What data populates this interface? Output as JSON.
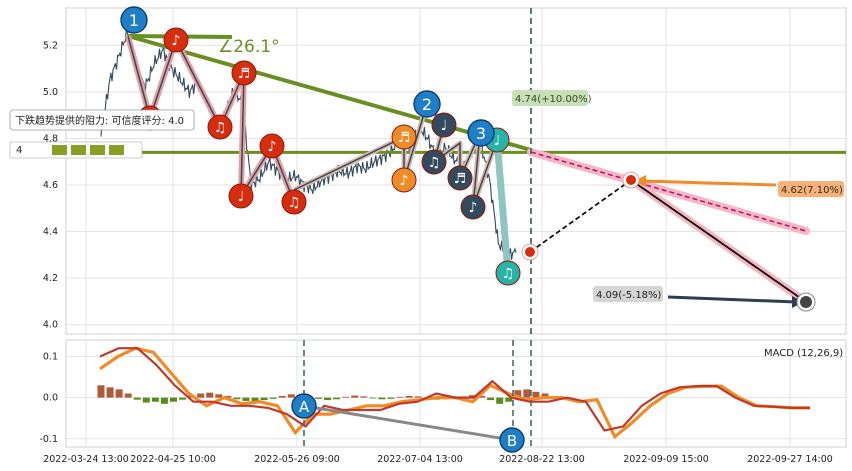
{
  "chart_data": [
    {
      "type": "line",
      "x_ticks": [
        "2022-03-24 13:00",
        "2022-04-25 10:00",
        "2022-05-26 09:00",
        "2022-07-04 13:00",
        "2022-08-22 13:00",
        "2022-09-09 15:00",
        "2022-09-27 14:00"
      ],
      "y_ticks": [
        4.0,
        4.2,
        4.4,
        4.6,
        4.8,
        5.0,
        5.2
      ],
      "ylim": [
        3.96,
        5.36
      ],
      "grid": true,
      "series": [
        {
          "values": [
            4.82,
            5.05,
            5.15,
            5.26,
            5.1,
            5.02,
            5.12,
            5.18,
            5.1,
            5.05,
            5.0,
            5.04,
            4.95,
            4.86,
            4.9,
            5.0,
            4.96,
            4.6,
            4.63,
            4.7,
            4.66,
            4.62,
            4.64,
            4.6,
            4.58,
            4.62,
            4.64,
            4.66,
            4.65,
            4.68,
            4.67,
            4.7,
            4.72,
            4.75,
            4.82,
            4.74,
            4.85,
            4.8,
            4.72,
            4.76,
            4.71,
            4.68,
            4.74,
            4.78,
            4.62,
            4.35,
            4.3,
            4.31
          ]
        }
      ],
      "annotations": {
        "angle_label": "∠26.1°",
        "resistance_label": "下跌趋势提供的阻力: 可信度评分: 4.0",
        "resistance_marker": "4",
        "target_up": "4.74(+10.00%)",
        "target_mid": "4.62(7.10%)",
        "target_down": "4.09(-5.18%)",
        "wave_labels": [
          "1",
          "2",
          "3"
        ],
        "horizontal_level": 4.74,
        "projection_points": [
          4.31,
          4.62,
          4.09,
          4.4
        ]
      }
    },
    {
      "type": "line",
      "title": "MACD (12,26,9)",
      "y_ticks": [
        -0.1,
        0.0,
        0.1
      ],
      "ylim": [
        -0.12,
        0.14
      ],
      "grid": true,
      "series": [
        {
          "values": [
            0.07,
            0.1,
            0.12,
            0.11,
            0.06,
            0.01,
            -0.02,
            0.0,
            -0.015,
            -0.01,
            -0.02,
            -0.085,
            -0.04,
            -0.04,
            -0.03,
            -0.02,
            -0.02,
            -0.01,
            -0.005,
            0.0,
            0.0,
            -0.01,
            0.03,
            0.01,
            -0.005,
            0.0,
            0.0,
            -0.01,
            -0.005,
            -0.095,
            -0.06,
            -0.02,
            0.01,
            0.025,
            0.028,
            0.028,
            0.0,
            -0.02,
            -0.022,
            -0.025,
            -0.025
          ]
        },
        {
          "values": [
            0.1,
            0.12,
            0.12,
            0.08,
            0.03,
            -0.01,
            -0.01,
            -0.02,
            -0.02,
            -0.025,
            -0.04,
            -0.07,
            -0.02,
            -0.03,
            -0.03,
            -0.03,
            -0.015,
            -0.01,
            0.01,
            0.0,
            0.0,
            0.04,
            0.0,
            -0.01,
            -0.01,
            0.0,
            -0.01,
            -0.08,
            -0.07,
            -0.02,
            0.01,
            0.025,
            0.028,
            0.028,
            0.0,
            -0.02,
            -0.022,
            -0.025,
            -0.025
          ]
        }
      ],
      "histogram": [
        0.03,
        0.025,
        0.02,
        0.01,
        -0.005,
        -0.012,
        -0.01,
        -0.015,
        -0.01,
        -0.005,
        0.005,
        0.01,
        0.012,
        0.008,
        0.004,
        -0.004,
        -0.008,
        -0.01,
        -0.006,
        -0.003,
        0.004,
        0.008,
        0.006,
        0.003,
        -0.003,
        -0.006,
        -0.004,
        0.002,
        0.005,
        0.003,
        -0.002,
        -0.004,
        -0.003,
        0.002,
        0.004,
        0.003,
        -0.002,
        -0.005,
        -0.004,
        -0.002,
        0.003,
        0.006,
        0.004,
        -0.006,
        -0.015,
        -0.01,
        0.018,
        0.02,
        0.014,
        0.01
      ],
      "annotations": {
        "point_labels": [
          "A",
          "B"
        ]
      }
    }
  ],
  "colors": {
    "price_line": "#34495e",
    "trend_green": "#6b8e23",
    "wave_red": "#d62d0f",
    "wave_orange": "#f08c28",
    "wave_dark": "#34495e",
    "wave_teal": "#27b3a8",
    "wave_blue": "#1f7ec8",
    "macd_red": "#c0392b",
    "macd_orange": "#f08c28",
    "dash_teal": "#476773",
    "channel_pink": "#f5b7c3",
    "label_green_bg": "#c8dfb8",
    "label_orange_bg": "#f6b27a",
    "label_gray_bg": "#d5d5d5"
  },
  "icons": {
    "note_icon": "music-note",
    "resistance_icon": "level-marker"
  }
}
